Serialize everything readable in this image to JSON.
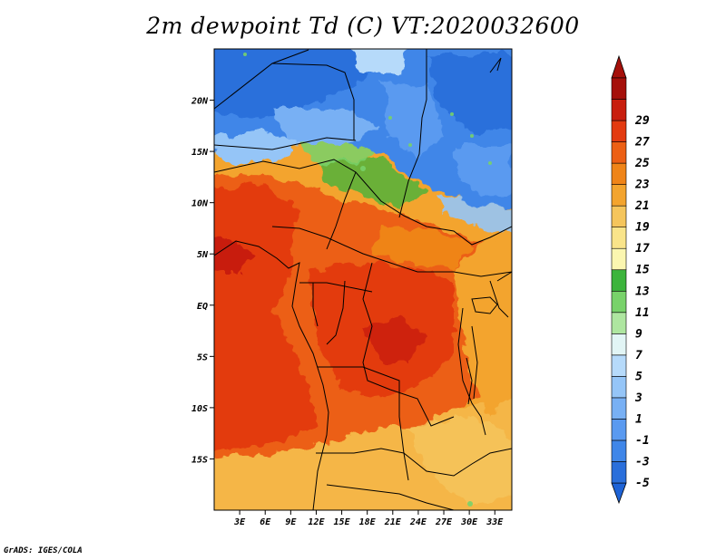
{
  "title": "2m dewpoint Td (C) VT:2020032600",
  "credit": "GrADS: IGES/COLA",
  "map": {
    "lat_range": [
      -20,
      25
    ],
    "lon_range": [
      0,
      35
    ],
    "lat_ticks": [
      {
        "value": 20,
        "label": "20N"
      },
      {
        "value": 15,
        "label": "15N"
      },
      {
        "value": 10,
        "label": "10N"
      },
      {
        "value": 5,
        "label": "5N"
      },
      {
        "value": 0,
        "label": "EQ"
      },
      {
        "value": -5,
        "label": "5S"
      },
      {
        "value": -10,
        "label": "10S"
      },
      {
        "value": -15,
        "label": "15S"
      }
    ],
    "lon_ticks": [
      {
        "value": 3,
        "label": "3E"
      },
      {
        "value": 6,
        "label": "6E"
      },
      {
        "value": 9,
        "label": "9E"
      },
      {
        "value": 12,
        "label": "12E"
      },
      {
        "value": 15,
        "label": "15E"
      },
      {
        "value": 18,
        "label": "18E"
      },
      {
        "value": 21,
        "label": "21E"
      },
      {
        "value": 24,
        "label": "24E"
      },
      {
        "value": 27,
        "label": "27E"
      },
      {
        "value": 30,
        "label": "30E"
      },
      {
        "value": 33,
        "label": "33E"
      }
    ]
  },
  "colorbar": {
    "levels": [
      {
        "color": "#2a6fdb",
        "label": "-5"
      },
      {
        "color": "#3f86e8",
        "label": "-3"
      },
      {
        "color": "#5a9af0",
        "label": "-1"
      },
      {
        "color": "#78b0f4",
        "label": "1"
      },
      {
        "color": "#95c5f7",
        "label": "3"
      },
      {
        "color": "#b6dafa",
        "label": "5"
      },
      {
        "color": "#e2f5f5",
        "label": "7"
      },
      {
        "color": "#aee6a0",
        "label": "9"
      },
      {
        "color": "#78d26a",
        "label": "11"
      },
      {
        "color": "#3cb43c",
        "label": "13"
      },
      {
        "color": "#fbf6b0",
        "label": "15"
      },
      {
        "color": "#f9e48a",
        "label": "17"
      },
      {
        "color": "#f5c55c",
        "label": "19"
      },
      {
        "color": "#f3a42e",
        "label": "21"
      },
      {
        "color": "#ef8418",
        "label": "23"
      },
      {
        "color": "#ec5f14",
        "label": "25"
      },
      {
        "color": "#e33a10",
        "label": "27"
      },
      {
        "color": "#c81e0e",
        "label": "29"
      },
      {
        "color": "#a5100a",
        "label": ""
      }
    ],
    "bottom_color": "#1e63d6"
  }
}
